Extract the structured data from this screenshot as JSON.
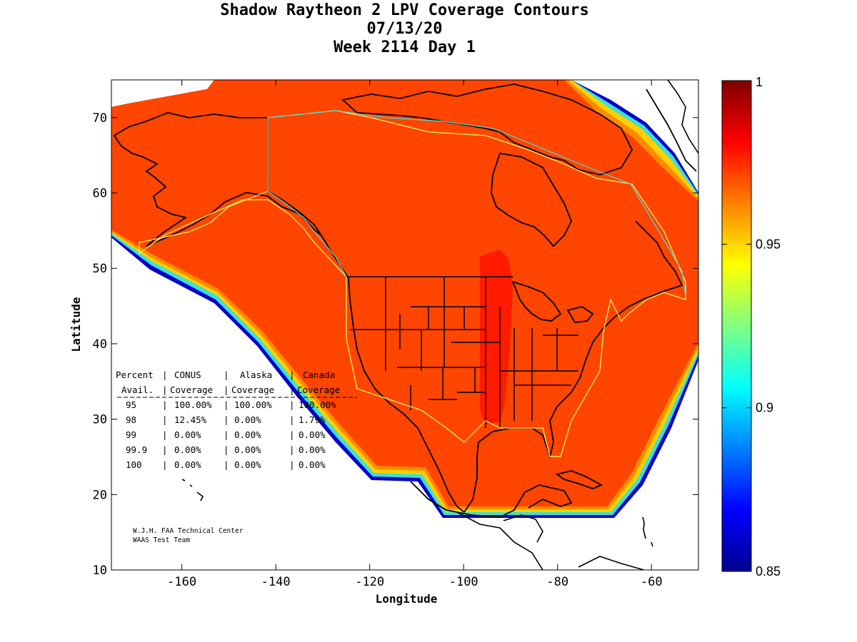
{
  "title_lines": [
    "Shadow Raytheon 2 LPV Coverage Contours",
    "07/13/20",
    "Week 2114 Day 1"
  ],
  "map": {
    "xlabel": "Longitude",
    "ylabel": "Latitude",
    "xlim": [
      -175,
      -50
    ],
    "ylim": [
      10,
      75
    ],
    "xticks": [
      -160,
      -140,
      -120,
      -100,
      -80,
      -60
    ],
    "yticks": [
      10,
      20,
      30,
      40,
      50,
      60,
      70
    ],
    "fill_color": "#ff4500",
    "high_zone_color": "#ff1a00",
    "edge_colors": [
      "#ff8c00",
      "#ffd000",
      "#40e0d0",
      "#1e90ff",
      "#0000cd"
    ],
    "background": "#ffffff"
  },
  "colorbar": {
    "min": 0.85,
    "max": 1,
    "ticks": [
      "1",
      "0.95",
      "0.9",
      "0.85"
    ],
    "colors": [
      "#7f0000",
      "#ff0000",
      "#ff8000",
      "#ffff00",
      "#80ff80",
      "#00ffff",
      "#0080ff",
      "#0000ff",
      "#00008f"
    ]
  },
  "table": {
    "header1": [
      "Percent",
      "CONUS",
      "Alaska",
      "Canada"
    ],
    "header2": [
      "Avail.",
      "Coverage",
      "Coverage",
      "Coverage"
    ],
    "rows": [
      [
        "95",
        "100.00%",
        "100.00%",
        "100.00%"
      ],
      [
        "98",
        "12.45%",
        "0.00%",
        "1.79%"
      ],
      [
        "99",
        "0.00%",
        "0.00%",
        "0.00%"
      ],
      [
        "99.9",
        "0.00%",
        "0.00%",
        "0.00%"
      ],
      [
        "100",
        "0.00%",
        "0.00%",
        "0.00%"
      ]
    ]
  },
  "credit_lines": [
    "W.J.H. FAA Technical Center",
    "WAAS Test Team"
  ]
}
